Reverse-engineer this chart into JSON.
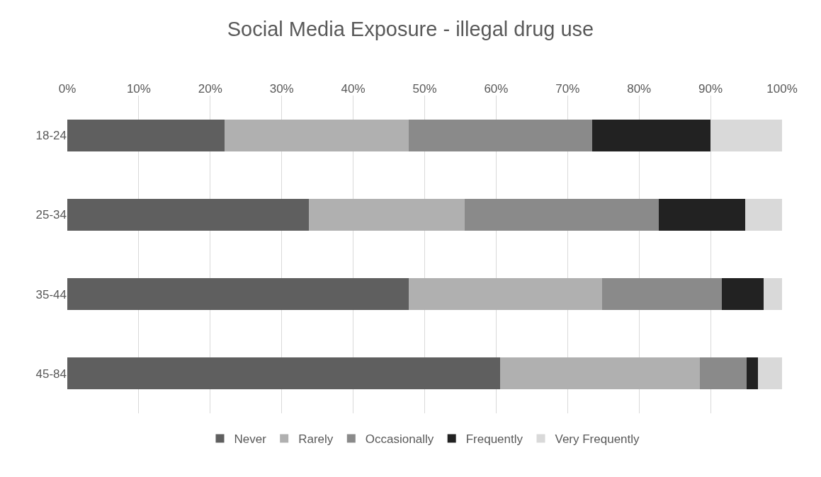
{
  "chart_data": {
    "type": "bar",
    "orientation": "horizontal",
    "stacked": true,
    "title": "Social Media Exposure - illegal drug use",
    "categories": [
      "18-24",
      "25-34",
      "35-44",
      "45-84"
    ],
    "series": [
      {
        "name": "Never",
        "color": "#5f5f5f",
        "values": [
          22.0,
          33.8,
          47.8,
          60.6
        ]
      },
      {
        "name": "Rarely",
        "color": "#b0b0b0",
        "values": [
          25.8,
          21.8,
          27.0,
          27.9
        ]
      },
      {
        "name": "Occasionally",
        "color": "#8a8a8a",
        "values": [
          25.6,
          27.2,
          16.8,
          6.5
        ]
      },
      {
        "name": "Frequently",
        "color": "#222222",
        "values": [
          16.6,
          12.0,
          5.8,
          1.6
        ]
      },
      {
        "name": "Very Frequently",
        "color": "#d9d9d9",
        "values": [
          10.0,
          5.2,
          2.6,
          3.4
        ]
      }
    ],
    "xlim": [
      0,
      100
    ],
    "xticks": [
      {
        "value": 0,
        "label": "0%"
      },
      {
        "value": 10,
        "label": "10%"
      },
      {
        "value": 20,
        "label": "20%"
      },
      {
        "value": 30,
        "label": "30%"
      },
      {
        "value": 40,
        "label": "40%"
      },
      {
        "value": 50,
        "label": "50%"
      },
      {
        "value": 60,
        "label": "60%"
      },
      {
        "value": 70,
        "label": "70%"
      },
      {
        "value": 80,
        "label": "80%"
      },
      {
        "value": 90,
        "label": "90%"
      },
      {
        "value": 100,
        "label": "100%"
      }
    ],
    "grid": "x",
    "legend": "bottom"
  }
}
